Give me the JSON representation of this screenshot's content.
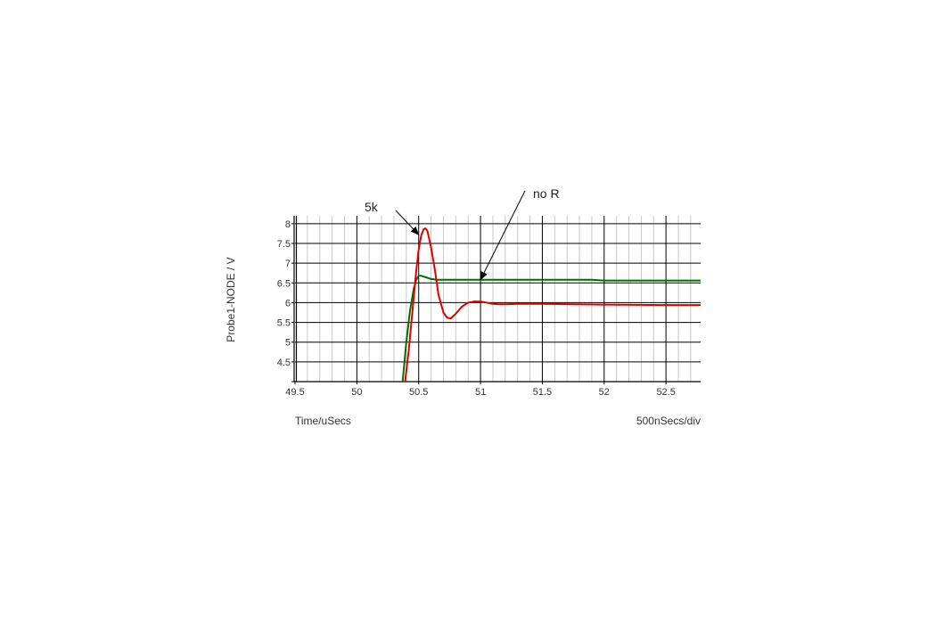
{
  "chart_data": {
    "type": "line",
    "xlabel": "Time/uSecs",
    "ylabel": "Probe1-NODE / V",
    "scale_label": "500nSecs/div",
    "xlim": [
      49.5,
      52.78
    ],
    "ylim": [
      4.0,
      8.2
    ],
    "x_ticks": [
      "49.5",
      "50",
      "50.5",
      "51",
      "51.5",
      "52",
      "52.5"
    ],
    "y_ticks": [
      "8",
      "7.5",
      "7",
      "6.5",
      "6",
      "5.5",
      "5",
      "4.5"
    ],
    "grid": true,
    "series": [
      {
        "name": "no R",
        "color": "#007000",
        "x": [
          50.37,
          50.4,
          50.43,
          50.46,
          50.48,
          50.5,
          50.52,
          50.55,
          50.6,
          50.65,
          50.7,
          51.0,
          51.5,
          51.9,
          52.0,
          52.5,
          52.78
        ],
        "y": [
          4.0,
          5.0,
          5.8,
          6.35,
          6.58,
          6.68,
          6.68,
          6.65,
          6.6,
          6.58,
          6.58,
          6.58,
          6.58,
          6.58,
          6.56,
          6.56,
          6.56
        ]
      },
      {
        "name": "5k",
        "color": "#e00000",
        "x": [
          50.39,
          50.42,
          50.45,
          50.48,
          50.5,
          50.52,
          50.54,
          50.555,
          50.57,
          50.6,
          50.63,
          50.66,
          50.7,
          50.73,
          50.76,
          50.8,
          50.85,
          50.9,
          50.95,
          51.0,
          51.05,
          51.1,
          51.15,
          51.2,
          51.3,
          51.5,
          52.0,
          52.5,
          52.78
        ],
        "y": [
          4.0,
          4.8,
          5.8,
          6.8,
          7.35,
          7.7,
          7.86,
          7.88,
          7.82,
          7.4,
          6.85,
          6.2,
          5.75,
          5.62,
          5.6,
          5.72,
          5.9,
          6.0,
          6.03,
          6.03,
          6.0,
          5.97,
          5.96,
          5.96,
          5.97,
          5.97,
          5.95,
          5.94,
          5.94
        ]
      }
    ],
    "annotations": [
      {
        "text": "5k",
        "target": [
          50.5,
          7.72
        ]
      },
      {
        "text": "no R",
        "target": [
          51.0,
          6.58
        ]
      }
    ]
  }
}
